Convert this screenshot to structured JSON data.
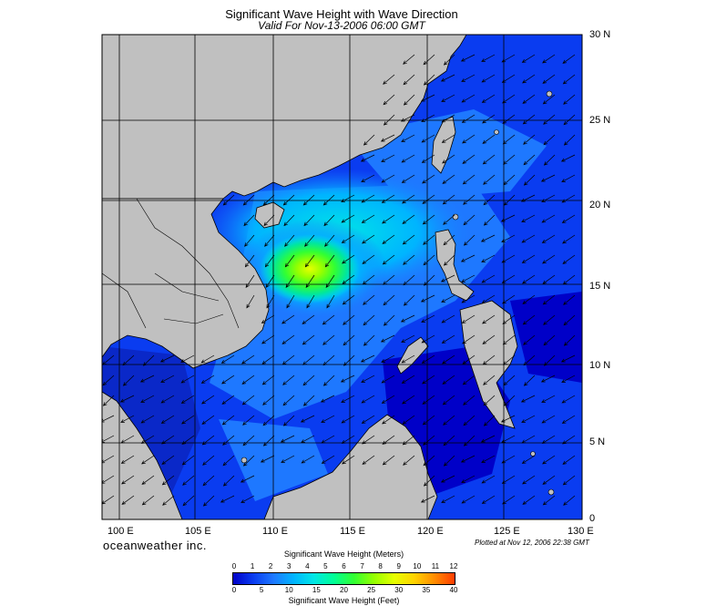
{
  "title": "Significant Wave Height with Wave Direction",
  "subtitle": "Valid For Nov-13-2006 06:00 GMT",
  "lat_labels": [
    "30 N",
    "25 N",
    "20 N",
    "15 N",
    "10 N",
    "5 N",
    "0"
  ],
  "lon_labels": [
    "100 E",
    "105 E",
    "110 E",
    "115 E",
    "120 E",
    "125 E",
    "130 E"
  ],
  "brand": "oceanweather inc.",
  "plotted": "Plotted at Nov 12, 2006 22:38 GMT",
  "colorbar": {
    "title_meters": "Significant Wave Height (Meters)",
    "title_feet": "Significant Wave Height (Feet)",
    "meter_ticks": [
      "0",
      "1",
      "2",
      "3",
      "4",
      "5",
      "6",
      "7",
      "8",
      "9",
      "10",
      "11",
      "12"
    ],
    "feet_ticks": [
      "0",
      "5",
      "10",
      "15",
      "20",
      "25",
      "30",
      "35",
      "40"
    ],
    "colors": [
      "#0000c8",
      "#0a3cf0",
      "#1e78ff",
      "#00b4ff",
      "#00e6e6",
      "#00ff96",
      "#32ff32",
      "#96ff00",
      "#e6ff00",
      "#ffd200",
      "#ff8c00",
      "#ff3c00"
    ]
  },
  "colors": {
    "land": "#c0c0c0",
    "deep_blue": "#0a3cf0",
    "grid": "#000000"
  }
}
